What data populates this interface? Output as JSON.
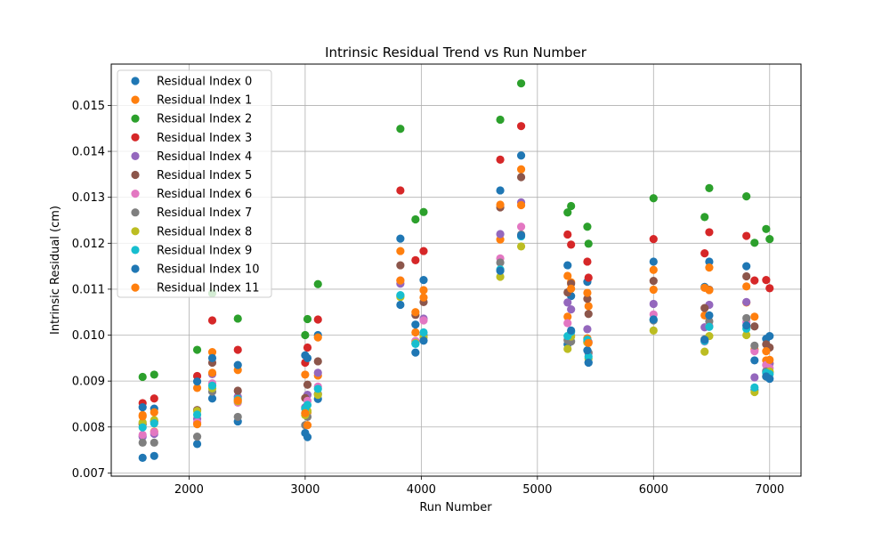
{
  "chart_data": {
    "type": "scatter",
    "title": "Intrinsic Residual Trend vs Run Number",
    "xlabel": "Run Number",
    "ylabel": "Intrinsic Residual (cm)",
    "xlim": [
      1330,
      7270
    ],
    "ylim": [
      0.00693,
      0.0159
    ],
    "x_ticks": [
      2000,
      3000,
      4000,
      5000,
      6000,
      7000
    ],
    "y_ticks": [
      0.007,
      0.008,
      0.009,
      0.01,
      0.011,
      0.012,
      0.013,
      0.014,
      0.015
    ],
    "y_tick_labels": [
      "0.007",
      "0.008",
      "0.009",
      "0.010",
      "0.011",
      "0.012",
      "0.013",
      "0.014",
      "0.015"
    ],
    "grid": true,
    "legend_position": "top-left",
    "x": [
      1600,
      1700,
      2070,
      2200,
      2420,
      3000,
      3020,
      3110,
      3820,
      3950,
      4020,
      4680,
      4860,
      5260,
      5290,
      5430,
      5440,
      6000,
      6440,
      6480,
      6800,
      6870,
      6970,
      7000
    ],
    "series": [
      {
        "name": "Residual Index 0",
        "color": "#1f77b4",
        "values": [
          0.00733,
          0.00737,
          0.00763,
          0.00862,
          0.00812,
          0.00787,
          0.00778,
          0.00861,
          0.0121,
          0.00962,
          0.0112,
          0.01315,
          0.01391,
          0.0098,
          0.01085,
          0.01116,
          0.00941,
          0.0116,
          0.01105,
          0.0116,
          0.0115,
          0.00881,
          0.00992,
          0.00998
        ]
      },
      {
        "name": "Residual Index 1",
        "color": "#ff7f0e",
        "values": [
          0.00826,
          0.0079,
          0.00885,
          0.00963,
          0.00924,
          0.00914,
          0.00832,
          0.00912,
          0.01183,
          0.01006,
          0.01098,
          0.01208,
          0.01361,
          0.0104,
          0.01115,
          0.00993,
          0.01063,
          0.01142,
          0.01043,
          0.01147,
          0.01071,
          0.00969,
          0.00945,
          0.00939
        ]
      },
      {
        "name": "Residual Index 2",
        "color": "#2ca02c",
        "values": [
          0.00909,
          0.00914,
          0.00968,
          0.01091,
          0.01036,
          0.01,
          0.01035,
          0.01111,
          0.01449,
          0.01252,
          0.01268,
          0.01469,
          0.01548,
          0.01267,
          0.01281,
          0.01236,
          0.01199,
          0.01298,
          0.01257,
          0.0132,
          0.01302,
          0.01201,
          0.01231,
          0.01209
        ]
      },
      {
        "name": "Residual Index 3",
        "color": "#d62728",
        "values": [
          0.00852,
          0.00862,
          0.00911,
          0.01032,
          0.00968,
          0.0094,
          0.00973,
          0.01034,
          0.01315,
          0.01163,
          0.01183,
          0.01382,
          0.01455,
          0.01219,
          0.01197,
          0.0116,
          0.01125,
          0.01209,
          0.01178,
          0.01224,
          0.01216,
          0.01119,
          0.0112,
          0.01102
        ]
      },
      {
        "name": "Residual Index 4",
        "color": "#9467bd",
        "values": [
          0.00779,
          0.00785,
          0.00818,
          0.00915,
          0.00866,
          0.00843,
          0.0087,
          0.00918,
          0.01112,
          0.00987,
          0.01036,
          0.0122,
          0.01289,
          0.01071,
          0.01056,
          0.01013,
          0.00985,
          0.01068,
          0.01017,
          0.01066,
          0.01072,
          0.00908,
          0.00922,
          0.00938
        ]
      },
      {
        "name": "Residual Index 5",
        "color": "#8c564b",
        "values": [
          0.00806,
          0.00812,
          0.00837,
          0.0094,
          0.00879,
          0.00863,
          0.00892,
          0.00943,
          0.01152,
          0.01044,
          0.01072,
          0.01278,
          0.01344,
          0.01093,
          0.01112,
          0.01079,
          0.01046,
          0.01118,
          0.01059,
          0.01099,
          0.01128,
          0.01019,
          0.0098,
          0.00973
        ]
      },
      {
        "name": "Residual Index 6",
        "color": "#e377c2",
        "values": [
          0.00783,
          0.00789,
          0.0081,
          0.00895,
          0.00853,
          0.0083,
          0.00857,
          0.00888,
          0.01119,
          0.00987,
          0.01032,
          0.01167,
          0.01236,
          0.01026,
          0.01,
          0.00984,
          0.0096,
          0.01045,
          0.00986,
          0.0102,
          0.01028,
          0.00965,
          0.00935,
          0.00928
        ]
      },
      {
        "name": "Residual Index 7",
        "color": "#7f7f7f",
        "values": [
          0.00766,
          0.00766,
          0.00779,
          0.00877,
          0.00822,
          0.00804,
          0.00822,
          0.00872,
          0.01085,
          0.00982,
          0.01,
          0.01158,
          0.01219,
          0.00989,
          0.00986,
          0.00986,
          0.00962,
          0.01032,
          0.00991,
          0.0103,
          0.01037,
          0.00977,
          0.00921,
          0.00919
        ]
      },
      {
        "name": "Residual Index 8",
        "color": "#bcbd22",
        "values": [
          0.0081,
          0.00815,
          0.00835,
          0.00884,
          0.00856,
          0.00826,
          0.00835,
          0.0087,
          0.01083,
          0.00983,
          0.00995,
          0.01127,
          0.01193,
          0.0097,
          0.00997,
          0.00984,
          0.00949,
          0.0101,
          0.00964,
          0.00998,
          0.01,
          0.00876,
          0.0091,
          0.00921
        ]
      },
      {
        "name": "Residual Index 9",
        "color": "#17becf",
        "values": [
          0.00799,
          0.00808,
          0.00827,
          0.0089,
          0.00861,
          0.0084,
          0.00848,
          0.00883,
          0.01087,
          0.00981,
          0.01006,
          0.01143,
          0.01215,
          0.00998,
          0.01007,
          0.0099,
          0.00953,
          0.01034,
          0.00987,
          0.01018,
          0.01014,
          0.00886,
          0.00918,
          0.00915
        ]
      },
      {
        "name": "Residual Index 10",
        "color": "#1f77b4",
        "values": [
          0.00843,
          0.0084,
          0.00899,
          0.0095,
          0.00935,
          0.00956,
          0.0095,
          0.01,
          0.01066,
          0.01023,
          0.00988,
          0.0114,
          0.01217,
          0.01152,
          0.0101,
          0.00967,
          0.0094,
          0.01034,
          0.0099,
          0.01043,
          0.01021,
          0.00945,
          0.0091,
          0.00905
        ]
      },
      {
        "name": "Residual Index 11",
        "color": "#ff7f0e",
        "values": [
          0.00823,
          0.00832,
          0.00806,
          0.00918,
          0.00858,
          0.0083,
          0.00804,
          0.00995,
          0.01119,
          0.0105,
          0.01082,
          0.01284,
          0.01283,
          0.01129,
          0.01101,
          0.01092,
          0.00983,
          0.01099,
          0.01103,
          0.01098,
          0.01106,
          0.0104,
          0.00965,
          0.00946
        ]
      }
    ]
  }
}
